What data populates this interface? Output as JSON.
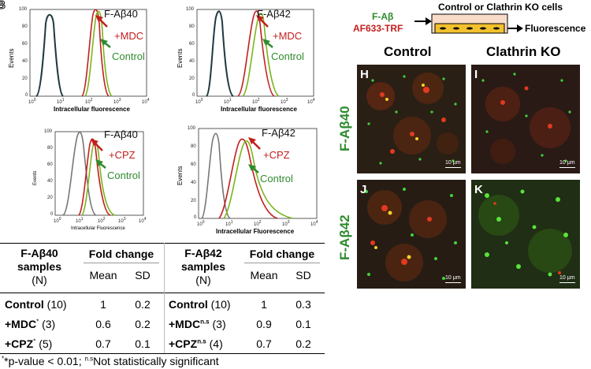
{
  "panels": {
    "top_left_partial_letter": "B",
    "H": "H",
    "I": "I",
    "J": "J",
    "K": "K"
  },
  "hist": [
    {
      "title": "F-Aβ40",
      "treatment": "+MDC",
      "control": "Control",
      "ylabel": "Events",
      "xlabel": "Intracellular fluorescence"
    },
    {
      "title": "F-Aβ42",
      "treatment": "+MDC",
      "control": "Control",
      "ylabel": "Events",
      "xlabel": "Intracellular fluorescence"
    },
    {
      "title": "F-Aβ40",
      "treatment": "+CPZ",
      "control": "Control",
      "ylabel": "Events",
      "xlabel": "Intracellular Fluorescence"
    },
    {
      "title": "F-Aβ42",
      "treatment": "+CPZ",
      "control": "Control",
      "ylabel": "Events",
      "xlabel": "Intracellular Fluorescence"
    }
  ],
  "yticks": [
    "100",
    "80",
    "60",
    "40",
    "20",
    "0"
  ],
  "xticks_base": "10",
  "xticks_exp": [
    "0",
    "1",
    "2",
    "3",
    "4"
  ],
  "colors": {
    "darkest": "#1f3a40",
    "mdc": "#c41e1e",
    "control": "#7ab51d",
    "gray": "#777777",
    "green_label": "#2e8b2e",
    "red_label": "#c41e1e"
  },
  "schematic": {
    "header": "Control or Clathrin KO cells",
    "fab": "F-Aβ",
    "trf": "AF633-TRF",
    "output": "Fluorescence"
  },
  "micro": {
    "col_control": "Control",
    "col_ko": "Clathrin KO",
    "row_40": "F-Aβ40",
    "row_42": "F-Aβ42",
    "scale": "10 μm"
  },
  "table40": {
    "h1": "F-Aβ40",
    "h2": "samples",
    "h3": "(N)",
    "fold": "Fold change",
    "mean": "Mean",
    "sd": "SD",
    "rows": [
      {
        "name": "Control",
        "sup": "",
        "n": " (10)",
        "mean": "1",
        "sd": "0.2"
      },
      {
        "name": "+MDC",
        "sup": "*",
        "n": " (3)",
        "mean": "0.6",
        "sd": "0.2"
      },
      {
        "name": "+CPZ",
        "sup": "*",
        "n": " (5)",
        "mean": "0.7",
        "sd": "0.1"
      }
    ]
  },
  "table42": {
    "h1": "F-Aβ42",
    "h2": "samples",
    "h3": "(N)",
    "fold": "Fold change",
    "mean": "Mean",
    "sd": "SD",
    "rows": [
      {
        "name": "Control",
        "sup": "",
        "n": " (10)",
        "mean": "1",
        "sd": "0.3"
      },
      {
        "name": "+MDC",
        "sup": "n.s",
        "n": " (3)",
        "mean": "0.9",
        "sd": "0.1"
      },
      {
        "name": "+CPZ",
        "sup": "n.s",
        "n": " (4)",
        "mean": "0.7",
        "sd": "0.2"
      }
    ]
  },
  "footnote": {
    "a": "*",
    "b": "*p-value < 0.01; ",
    "sup": "n.s",
    "c": "Not statistically significant"
  }
}
